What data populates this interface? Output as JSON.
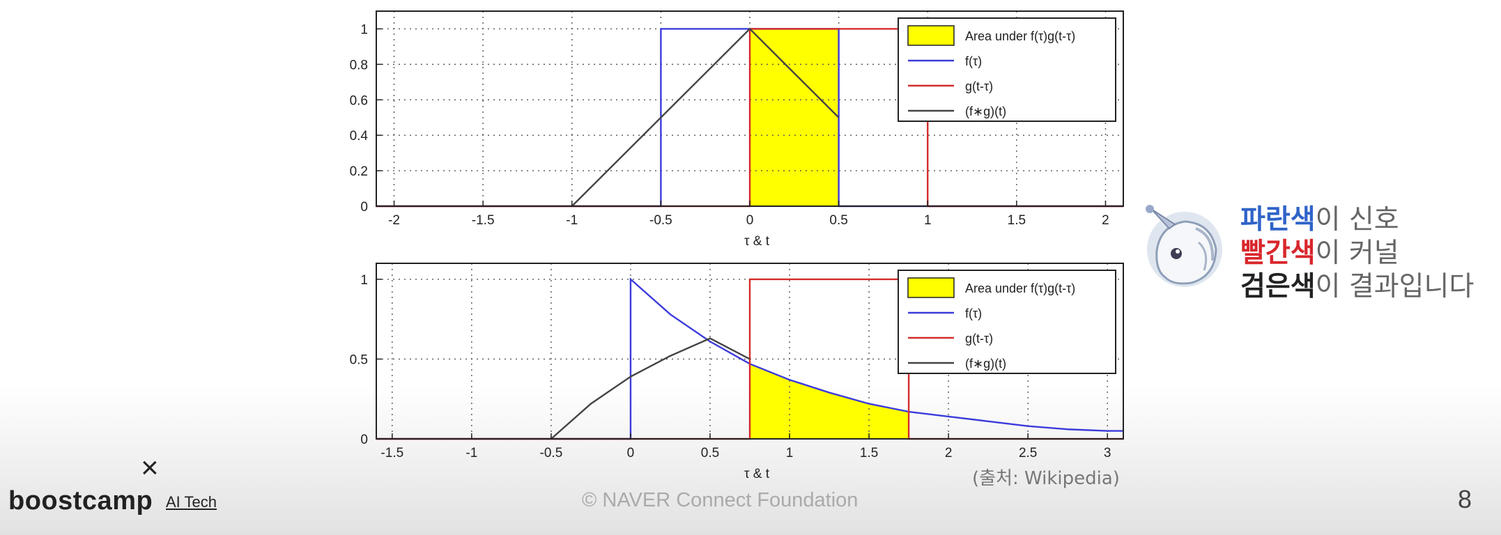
{
  "chart_data": [
    {
      "type": "line",
      "xlabel": "τ & t",
      "ylabel": "",
      "xlim": [
        -2.1,
        2.1
      ],
      "ylim": [
        0,
        1.1
      ],
      "xticks": [
        -2,
        -1.5,
        -1,
        -0.5,
        0,
        0.5,
        1,
        1.5,
        2
      ],
      "xtick_labels": [
        "-2",
        "-1.5",
        "-1",
        "-0.5",
        "0",
        "0.5",
        "1",
        "1.5",
        "2"
      ],
      "yticks": [
        0,
        0.2,
        0.4,
        0.6,
        0.8,
        1
      ],
      "ytick_labels": [
        "0",
        "0.2",
        "0.4",
        "0.6",
        "0.8",
        "1"
      ],
      "grid": true,
      "legend_position": "top-right",
      "legend": [
        "Area under f(τ)g(t-τ)",
        "f(τ)",
        "g(t-τ)",
        "(f∗g)(t)"
      ],
      "series": [
        {
          "name": "f(τ)",
          "color": "#3b3bdb",
          "x": [
            -2.1,
            -0.5,
            -0.5,
            0.5,
            0.5,
            2.1
          ],
          "y": [
            0,
            0,
            1,
            1,
            0,
            0
          ]
        },
        {
          "name": "g(t-τ)",
          "color": "#d42c2c",
          "x": [
            -2.1,
            0,
            0,
            1,
            1,
            2.1
          ],
          "y": [
            0,
            0,
            1,
            1,
            0,
            0
          ]
        },
        {
          "name": "(f∗g)(t)",
          "color": "#444444",
          "x": [
            -1,
            0,
            0.5
          ],
          "y": [
            0,
            1,
            0.5
          ]
        }
      ],
      "area": {
        "name": "Area under f(τ)g(t-τ)",
        "color": "#ffff00",
        "x": [
          0,
          0,
          0.5,
          0.5
        ],
        "y": [
          0,
          1,
          1,
          0
        ]
      }
    },
    {
      "type": "line",
      "xlabel": "τ & t",
      "ylabel": "",
      "xlim": [
        -1.6,
        3.1
      ],
      "ylim": [
        0,
        1.1
      ],
      "xticks": [
        -1.5,
        -1,
        -0.5,
        0,
        0.5,
        1,
        1.5,
        2,
        2.5,
        3
      ],
      "xtick_labels": [
        "-1.5",
        "-1",
        "-0.5",
        "0",
        "0.5",
        "1",
        "1.5",
        "2",
        "2.5",
        "3"
      ],
      "yticks": [
        0,
        0.5,
        1
      ],
      "ytick_labels": [
        "0",
        "0.5",
        "1"
      ],
      "grid": true,
      "legend_position": "top-right",
      "legend": [
        "Area under f(τ)g(t-τ)",
        "f(τ)",
        "g(t-τ)",
        "(f∗g)(t)"
      ],
      "series": [
        {
          "name": "f(τ)",
          "color": "#3b3bdb",
          "x": [
            -1.6,
            0,
            0,
            0.25,
            0.5,
            0.75,
            1,
            1.25,
            1.5,
            1.75,
            2,
            2.25,
            2.5,
            2.75,
            3,
            3.1
          ],
          "y": [
            0,
            0,
            1,
            0.78,
            0.61,
            0.47,
            0.37,
            0.29,
            0.22,
            0.17,
            0.14,
            0.11,
            0.08,
            0.06,
            0.05,
            0.05
          ]
        },
        {
          "name": "g(t-τ)",
          "color": "#d42c2c",
          "x": [
            -1.6,
            0.75,
            0.75,
            1.75,
            1.75,
            3.1
          ],
          "y": [
            0,
            0,
            1,
            1,
            0,
            0
          ]
        },
        {
          "name": "(f∗g)(t)",
          "color": "#444444",
          "x": [
            -0.5,
            -0.25,
            0,
            0.25,
            0.5,
            0.75
          ],
          "y": [
            0,
            0.22,
            0.39,
            0.52,
            0.63,
            0.5
          ]
        }
      ],
      "area": {
        "name": "Area under f(τ)g(t-τ)",
        "color": "#ffff00",
        "x": [
          0.75,
          1,
          1.25,
          1.5,
          1.75
        ],
        "y": [
          0.47,
          0.37,
          0.29,
          0.22,
          0.17
        ]
      }
    }
  ],
  "callout": {
    "line1_colored": "파란색",
    "line1_rest": "이 신호",
    "line2_colored": "빨간색",
    "line2_rest": "이 커널",
    "line3_colored": "검은색",
    "line3_rest": "이 결과입니다"
  },
  "source": "(출처: Wikipedia)",
  "brand": {
    "mark": "×",
    "name": "boostcamp",
    "sub": "AI Tech"
  },
  "footer": "©  NAVER Connect Foundation",
  "page_number": "8",
  "mascot_icon": "unicorn-mascot-icon"
}
